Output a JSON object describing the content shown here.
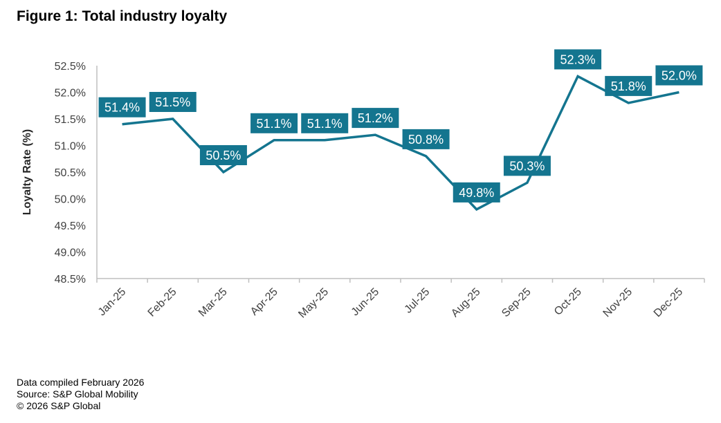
{
  "chart_data": {
    "type": "line",
    "title": "Figure 1: Total industry loyalty",
    "xlabel": "",
    "ylabel": "Loyalty Rate (%)",
    "categories": [
      "Jan-25",
      "Feb-25",
      "Mar-25",
      "Apr-25",
      "May-25",
      "Jun-25",
      "Jul-25",
      "Aug-25",
      "Sep-25",
      "Oct-25",
      "Nov-25",
      "Dec-25"
    ],
    "values": [
      51.4,
      51.5,
      50.5,
      51.1,
      51.1,
      51.2,
      50.8,
      49.8,
      50.3,
      52.3,
      51.8,
      52.0
    ],
    "data_labels": [
      "51.4%",
      "51.5%",
      "50.5%",
      "51.1%",
      "51.1%",
      "51.2%",
      "50.8%",
      "49.8%",
      "50.3%",
      "52.3%",
      "51.8%",
      "52.0%"
    ],
    "ylim": [
      48.5,
      52.5
    ],
    "yticks": [
      "48.5%",
      "49.0%",
      "49.5%",
      "50.0%",
      "50.5%",
      "51.0%",
      "51.5%",
      "52.0%",
      "52.5%"
    ],
    "grid": false,
    "line_color": "#14758f"
  },
  "notes": [
    "Data compiled February 2026",
    "Source: S&P Global Mobility",
    "© 2026 S&P Global"
  ]
}
